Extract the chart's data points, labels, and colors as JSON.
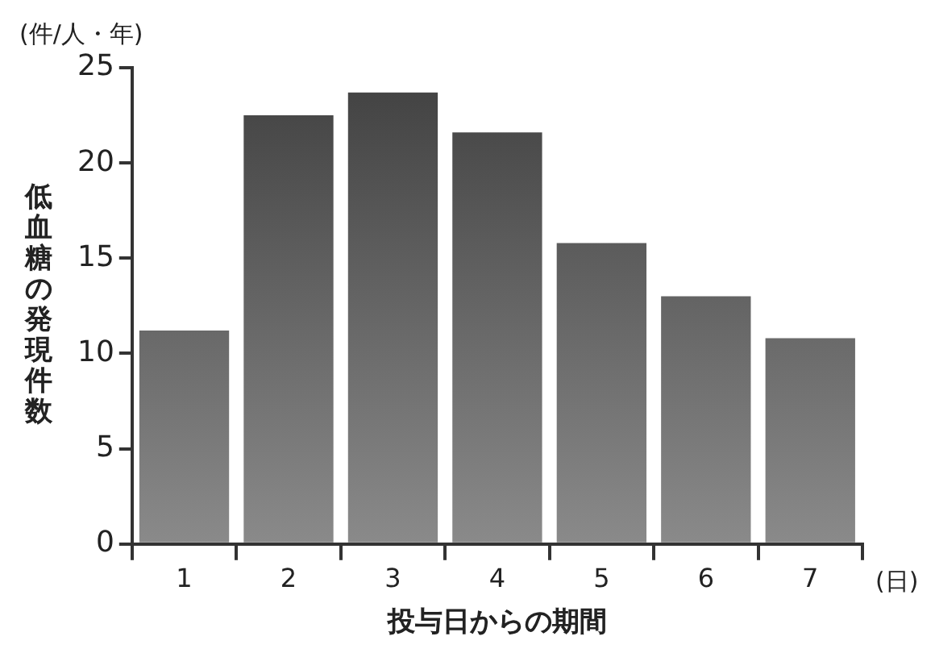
{
  "chart_data": {
    "type": "bar",
    "xlabel": "投与日からの期間",
    "ylabel": "低血糖の発現件数",
    "annotations": [
      "(件/人・年)",
      "(日)"
    ],
    "categories": [
      "1",
      "2",
      "3",
      "4",
      "5",
      "6",
      "7"
    ],
    "values": [
      11.2,
      22.5,
      23.7,
      21.6,
      15.8,
      13.0,
      10.8
    ],
    "color": "#404040",
    "ylim": [
      0,
      25
    ],
    "yticks": [
      0,
      5,
      10,
      15,
      20,
      25
    ],
    "grid": false,
    "legend": false
  }
}
